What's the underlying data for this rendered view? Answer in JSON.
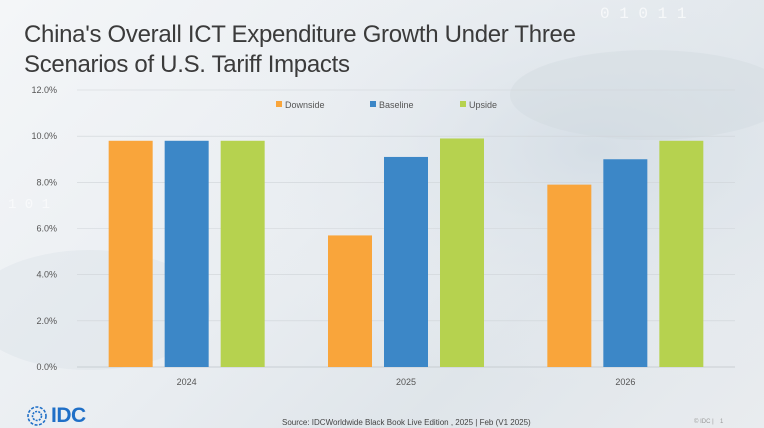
{
  "title_line1": "China's Overall ICT Expenditure Growth Under Three",
  "title_line2": "Scenarios of U.S. Tariff Impacts",
  "logo_text": "IDC",
  "source": "Source: IDCWorldwide Black Book Live Edition ,  2025 |  Feb (V1 2025)",
  "copyright": "© IDC |",
  "page_number": "1",
  "colors": {
    "downside": "#f9a53b",
    "baseline": "#3c87c7",
    "upside": "#b6d24f",
    "grid": "#cfd4d8",
    "axis_text": "#555555",
    "logo": "#1f6fc7"
  },
  "chart_data": {
    "type": "bar",
    "title": "China's Overall ICT Expenditure Growth Under Three Scenarios of U.S. Tariff Impacts",
    "categories": [
      "2024",
      "2025",
      "2026"
    ],
    "series": [
      {
        "name": "Downside",
        "values": [
          9.8,
          5.7,
          7.9
        ]
      },
      {
        "name": "Baseline",
        "values": [
          9.8,
          9.1,
          9.0
        ]
      },
      {
        "name": "Upside",
        "values": [
          9.8,
          9.9,
          9.8
        ]
      }
    ],
    "y_ticks": [
      "0.0%",
      "2.0%",
      "4.0%",
      "6.0%",
      "8.0%",
      "10.0%",
      "12.0%"
    ],
    "ylim": [
      0,
      12
    ],
    "xlabel": "",
    "ylabel": "",
    "legend_position": "top-center",
    "grid": true
  }
}
